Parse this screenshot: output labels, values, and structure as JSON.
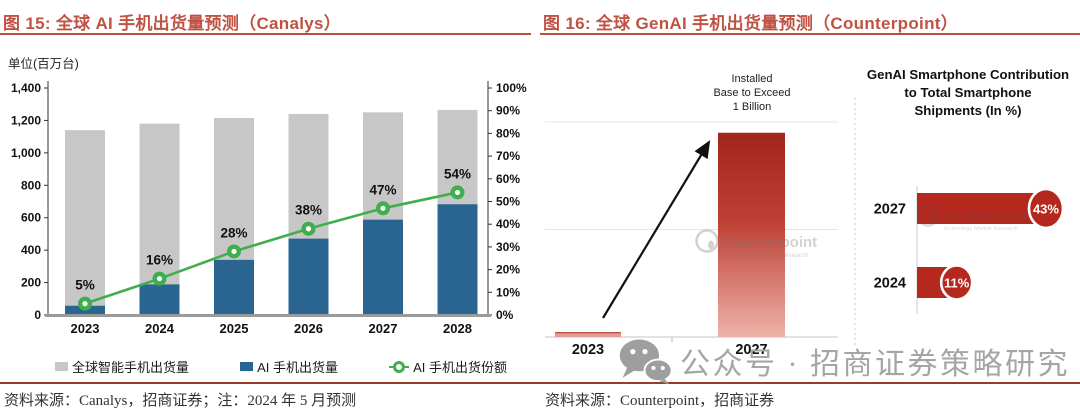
{
  "figures": {
    "left": {
      "title": "图 15: 全球 AI 手机出货量预测（Canalys）",
      "source": "资料来源：Canalys，招商证券；注：2024 年 5 月预测"
    },
    "right": {
      "title": "图 16: 全球 GenAI 手机出货量预测（Counterpoint）",
      "source": "资料来源：Counterpoint，招商证券"
    }
  },
  "watermark": {
    "wechat_text": "公众号 · 招商证券策略研究",
    "counterpoint_logo": "Counterpoint",
    "counterpoint_tagline": "Technology Market Research"
  },
  "colors": {
    "accent_title": "#bf5243",
    "divider": "#9a3a2a",
    "gray_bar": "#c7c7c7",
    "blue_bar": "#2a6591",
    "green_line": "#3fae4c",
    "red_bar": "#b5281e"
  },
  "chart_data": [
    {
      "id": "canalys-ai-phone-forecast",
      "type": "bar",
      "title": "全球 AI 手机出货量预测（Canalys）",
      "categories": [
        "2023",
        "2024",
        "2025",
        "2026",
        "2027",
        "2028"
      ],
      "series": [
        {
          "name": "全球智能手机出货量",
          "type": "bar",
          "color": "#c7c7c7",
          "values": [
            1140,
            1180,
            1215,
            1240,
            1250,
            1265
          ]
        },
        {
          "name": "AI 手机出货量",
          "type": "bar",
          "color": "#2a6591",
          "values": [
            57,
            189,
            340,
            471,
            588,
            683
          ]
        },
        {
          "name": "AI 手机出货份额",
          "type": "line",
          "color": "#3fae4c",
          "axis": "right",
          "values_pct": [
            5,
            16,
            28,
            38,
            47,
            54
          ],
          "labels": [
            "5%",
            "16%",
            "28%",
            "38%",
            "47%",
            "54%"
          ]
        }
      ],
      "left_axis": {
        "label": "单位(百万台)",
        "min": 0,
        "max": 1400,
        "step": 200,
        "ticks": [
          "0",
          "200",
          "400",
          "600",
          "800",
          "1,000",
          "1,200",
          "1,400"
        ]
      },
      "right_axis": {
        "min": 0,
        "max": 100,
        "step": 10,
        "ticks": [
          "0%",
          "10%",
          "20%",
          "30%",
          "40%",
          "50%",
          "60%",
          "70%",
          "80%",
          "90%",
          "100%"
        ]
      },
      "legend_position": "bottom",
      "grid": false
    },
    {
      "id": "counterpoint-genai-installed-base",
      "type": "bar",
      "categories": [
        "2023",
        "2027"
      ],
      "values": [
        20,
        950
      ],
      "ylim": [
        0,
        1100
      ],
      "gridline_values": [
        500,
        1000
      ],
      "annotation_lines": [
        "Installed",
        "Base to Exceed",
        "1 Billion"
      ],
      "bar_color_2023": "#e49c93",
      "bar_gradient_2027": [
        "#a2251c",
        "#bf4236",
        "#efb2a9"
      ],
      "grid": true
    },
    {
      "id": "counterpoint-genai-contribution",
      "type": "bar-horizontal",
      "title": "GenAI Smartphone Contribution to Total Smartphone Shipments (In %)",
      "title_lines": [
        "GenAI Smartphone Contribution",
        "to Total Smartphone",
        "Shipments (In %)"
      ],
      "categories": [
        "2027",
        "2024"
      ],
      "values": [
        43,
        11
      ],
      "labels": [
        "43%",
        "11%"
      ],
      "xlim": [
        0,
        46
      ],
      "bar_color": "#b5281e",
      "grid": false
    }
  ]
}
